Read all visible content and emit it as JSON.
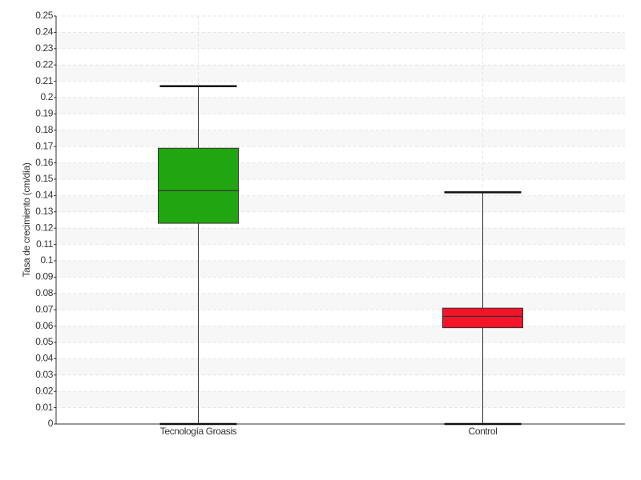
{
  "chart_data": {
    "type": "box",
    "y_label": "Tasa de crecimiento (cm/día)",
    "categories": [
      "Tecnología Groasis",
      "Control"
    ],
    "boxes": [
      {
        "min": 0,
        "q1": 0.123,
        "median": 0.143,
        "q3": 0.169,
        "max": 0.207,
        "color": "#21a510"
      },
      {
        "min": 0,
        "q1": 0.059,
        "median": 0.066,
        "q3": 0.071,
        "max": 0.142,
        "color": "#f5142a"
      }
    ],
    "ylim": [
      0,
      0.25
    ],
    "yticks": [
      0,
      0.01,
      0.02,
      0.03,
      0.04,
      0.05,
      0.06,
      0.07,
      0.08,
      0.09,
      0.1,
      0.11,
      0.12,
      0.13,
      0.14,
      0.15,
      0.16,
      0.17,
      0.18,
      0.19,
      0.2,
      0.21,
      0.22,
      0.23,
      0.24,
      0.25
    ],
    "grid": true
  }
}
